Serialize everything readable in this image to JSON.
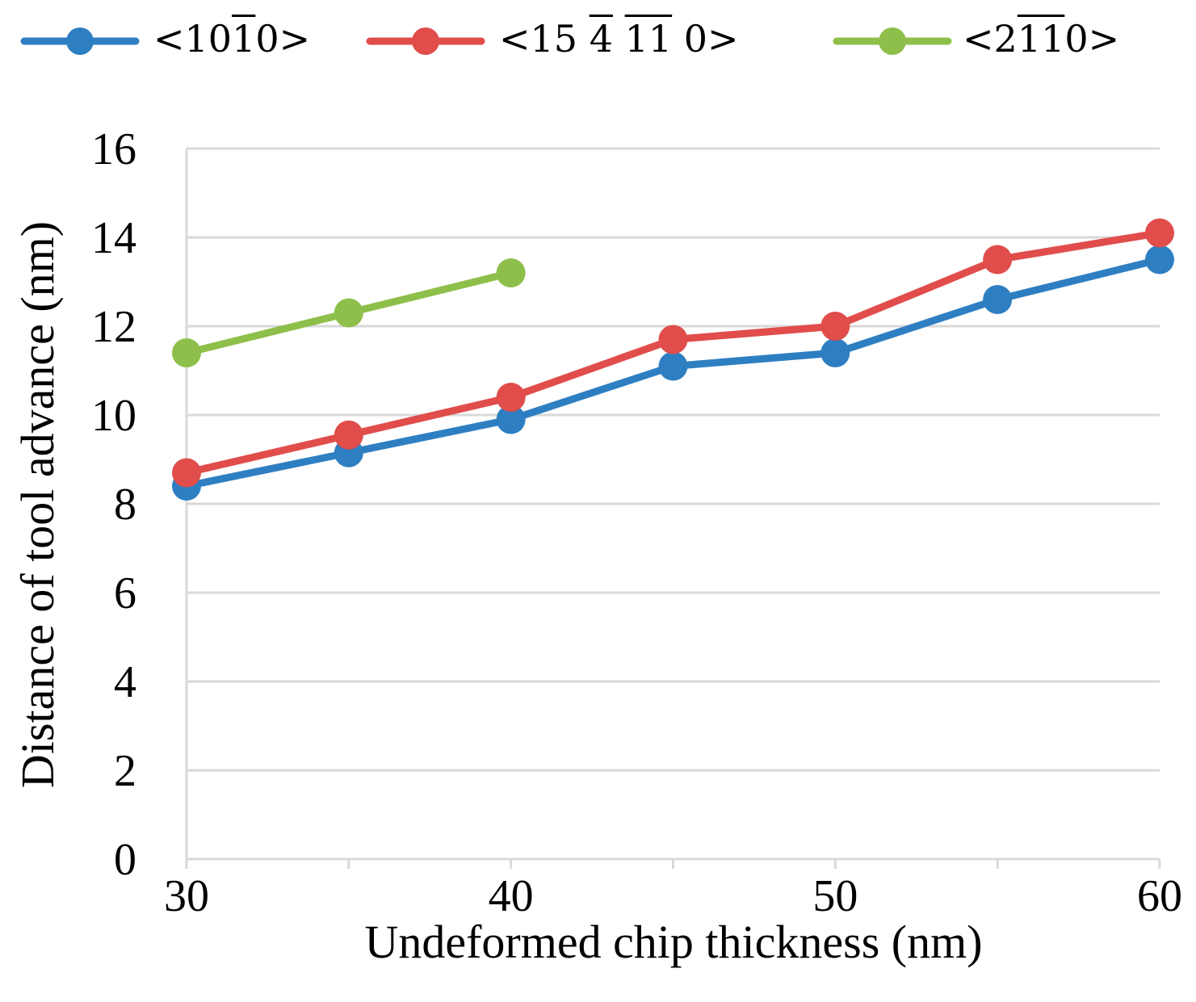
{
  "chart_data": {
    "type": "line",
    "title": "",
    "xlabel": "Undeformed chip thickness (nm)",
    "ylabel": "Distance of tool advance (nm)",
    "xlim": [
      30,
      60
    ],
    "ylim": [
      0,
      16
    ],
    "x_ticks": [
      30,
      35,
      40,
      45,
      50,
      55,
      60
    ],
    "x_tick_labels": [
      "30",
      "",
      "40",
      "",
      "50",
      "",
      "60"
    ],
    "y_ticks": [
      0,
      2,
      4,
      6,
      8,
      10,
      12,
      14,
      16
    ],
    "y_tick_labels": [
      "0",
      "2",
      "4",
      "6",
      "8",
      "10",
      "12",
      "14",
      "16"
    ],
    "grid": "horizontal",
    "legend_position": "top",
    "series": [
      {
        "name": "<10-10>",
        "legend_parts": [
          {
            "text": "<10",
            "overline": false
          },
          {
            "text": "1",
            "overline": true
          },
          {
            "text": "0>",
            "overline": false
          }
        ],
        "color": "#2e7fc2",
        "x": [
          30,
          35,
          40,
          45,
          50,
          55,
          60
        ],
        "values": [
          8.4,
          9.15,
          9.9,
          11.1,
          11.4,
          12.6,
          13.5
        ]
      },
      {
        "name": "<15 -4 -11 0>",
        "legend_parts": [
          {
            "text": "<15 ",
            "overline": false
          },
          {
            "text": "4",
            "overline": true
          },
          {
            "text": " ",
            "overline": false
          },
          {
            "text": "11",
            "overline": true
          },
          {
            "text": " 0>",
            "overline": false
          }
        ],
        "color": "#e04d4b",
        "x": [
          30,
          35,
          40,
          45,
          50,
          55,
          60
        ],
        "values": [
          8.7,
          9.55,
          10.4,
          11.7,
          12.0,
          13.5,
          14.1
        ]
      },
      {
        "name": "<2-1-10>",
        "legend_parts": [
          {
            "text": "<2",
            "overline": false
          },
          {
            "text": "11",
            "overline": true
          },
          {
            "text": "0>",
            "overline": false
          }
        ],
        "color": "#8ebf4a",
        "x": [
          30,
          35,
          40
        ],
        "values": [
          11.4,
          12.3,
          13.2
        ]
      }
    ]
  },
  "colors": {
    "axis": "#d9d9d9",
    "grid": "#d9d9d9",
    "text": "#000000"
  }
}
